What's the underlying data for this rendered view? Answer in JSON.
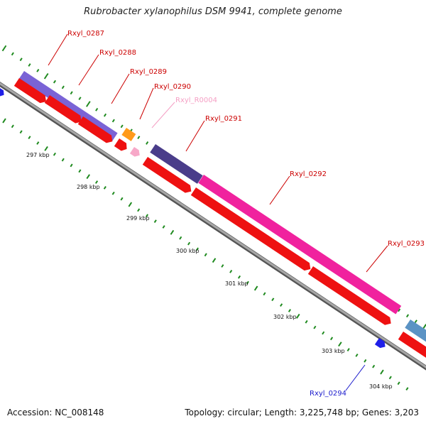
{
  "title": "Rubrobacter xylanophilus DSM 9941, complete genome",
  "footer": {
    "accession": "Accession: NC_008148",
    "topology": "Topology: circular; Length: 3,225,748 bp; Genes: 3,203"
  },
  "colors": {
    "cds": "#ee1111",
    "trna": "#f7a8c8",
    "other_strand_gene": "#1f1fe8",
    "feature_blue_purple": "#7a63d6",
    "feature_orange": "#ff9a1a",
    "feature_dark_purple": "#4a3d8a",
    "feature_magenta": "#f0229e",
    "feature_steel_blue": "#5b93c4",
    "backbone": "#888888",
    "tick": "#1f8a1f"
  },
  "kbp_labels": [
    "297 kbp",
    "298 kbp",
    "299 kbp",
    "300 kbp",
    "301 kbp",
    "302 kbp",
    "303 kbp",
    "304 kbp"
  ],
  "gene_labels": [
    {
      "name": "Rxyl_0287",
      "color": "#cc0000"
    },
    {
      "name": "Rxyl_0288",
      "color": "#cc0000"
    },
    {
      "name": "Rxyl_0289",
      "color": "#cc0000"
    },
    {
      "name": "Rxyl_0290",
      "color": "#cc0000"
    },
    {
      "name": "Rxyl_R0004",
      "color": "#f59fc4"
    },
    {
      "name": "Rxyl_0291",
      "color": "#cc0000"
    },
    {
      "name": "Rxyl_0292",
      "color": "#cc0000"
    },
    {
      "name": "Rxyl_0293",
      "color": "#cc0000"
    },
    {
      "name": "Rxyl_0294",
      "color": "#1a1acc"
    }
  ]
}
